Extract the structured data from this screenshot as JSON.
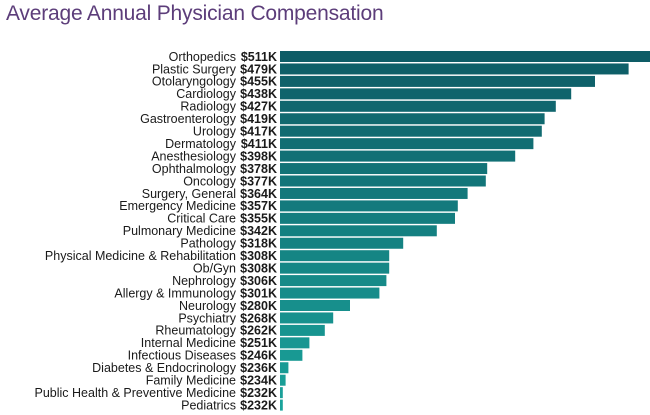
{
  "title": "Average Annual Physician Compensation",
  "chart_data": {
    "type": "bar",
    "orientation": "horizontal",
    "title": "Average Annual Physician Compensation",
    "xlabel": "",
    "ylabel": "",
    "units": "thousand USD",
    "categories": [
      "Orthopedics",
      "Plastic Surgery",
      "Otolaryngology",
      "Cardiology",
      "Radiology",
      "Gastroenterology",
      "Urology",
      "Dermatology",
      "Anesthesiology",
      "Ophthalmology",
      "Oncology",
      "Surgery, General",
      "Emergency Medicine",
      "Critical Care",
      "Pulmonary Medicine",
      "Pathology",
      "Physical Medicine & Rehabilitation",
      "Ob/Gyn",
      "Nephrology",
      "Allergy & Immunology",
      "Neurology",
      "Psychiatry",
      "Rheumatology",
      "Internal Medicine",
      "Infectious Diseases",
      "Diabetes & Endocrinology",
      "Family Medicine",
      "Public Health & Preventive Medicine",
      "Pediatrics"
    ],
    "values": [
      511,
      479,
      455,
      438,
      427,
      419,
      417,
      411,
      398,
      378,
      377,
      364,
      357,
      355,
      342,
      318,
      308,
      308,
      306,
      301,
      280,
      268,
      262,
      251,
      246,
      236,
      234,
      232,
      232
    ],
    "value_labels": [
      "$511K",
      "$479K",
      "$455K",
      "$438K",
      "$427K",
      "$419K",
      "$417K",
      "$411K",
      "$398K",
      "$378K",
      "$377K",
      "$364K",
      "$357K",
      "$355K",
      "$342K",
      "$318K",
      "$308K",
      "$308K",
      "$306K",
      "$301K",
      "$280K",
      "$268K",
      "$262K",
      "$251K",
      "$246K",
      "$236K",
      "$234K",
      "$232K",
      "$232K"
    ],
    "grid": false,
    "legend": "none",
    "colors": {
      "top": "#0e5c66",
      "bottom": "#1aa39b",
      "title": "#5c3d7a"
    }
  }
}
